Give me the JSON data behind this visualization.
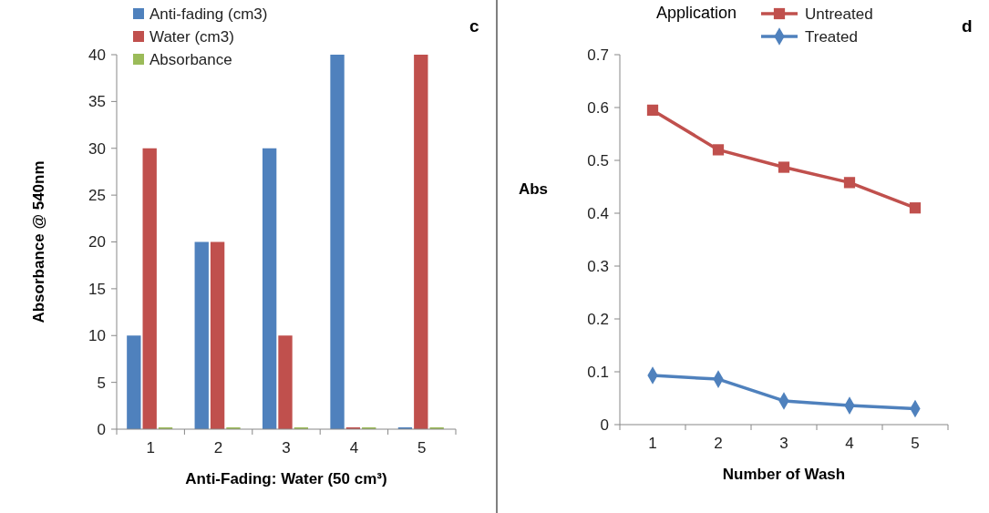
{
  "chart_data": [
    {
      "type": "bar",
      "categories": [
        "1",
        "2",
        "3",
        "4",
        "5"
      ],
      "xlabel": "Anti-Fading: Water (50 cm³)",
      "ylabel": "Absorbance @ 540nm",
      "ylim": [
        0,
        40
      ],
      "yticks": [
        0,
        5,
        10,
        15,
        20,
        25,
        30,
        35,
        40
      ],
      "grid": false,
      "legend": "top left",
      "annotations": [
        "c"
      ],
      "series": [
        {
          "name": "Anti-fading (cm3)",
          "color": "#4f81bd",
          "values": [
            10,
            20,
            30,
            40,
            0
          ]
        },
        {
          "name": "Water (cm3)",
          "color": "#c0504d",
          "values": [
            30,
            20,
            10,
            0,
            40
          ]
        },
        {
          "name": "Absorbance",
          "color": "#9bbb59",
          "values": [
            0,
            0,
            0,
            0,
            0
          ]
        }
      ]
    },
    {
      "type": "line",
      "categories": [
        "1",
        "2",
        "3",
        "4",
        "5"
      ],
      "xlabel": "Number of Wash",
      "ylabel": "Abs",
      "ylim": [
        0,
        0.7
      ],
      "yticks": [
        0,
        0.1,
        0.2,
        0.3,
        0.4,
        0.5,
        0.6,
        0.7
      ],
      "grid": false,
      "legend": "top right",
      "annotations": [
        "Application",
        "d"
      ],
      "series": [
        {
          "name": "Untreated",
          "color": "#c0504d",
          "marker": "square",
          "values": [
            0.595,
            0.52,
            0.487,
            0.458,
            0.41
          ]
        },
        {
          "name": "Treated",
          "color": "#4f81bd",
          "marker": "diamond",
          "values": [
            0.093,
            0.086,
            0.045,
            0.036,
            0.03
          ]
        }
      ]
    }
  ]
}
